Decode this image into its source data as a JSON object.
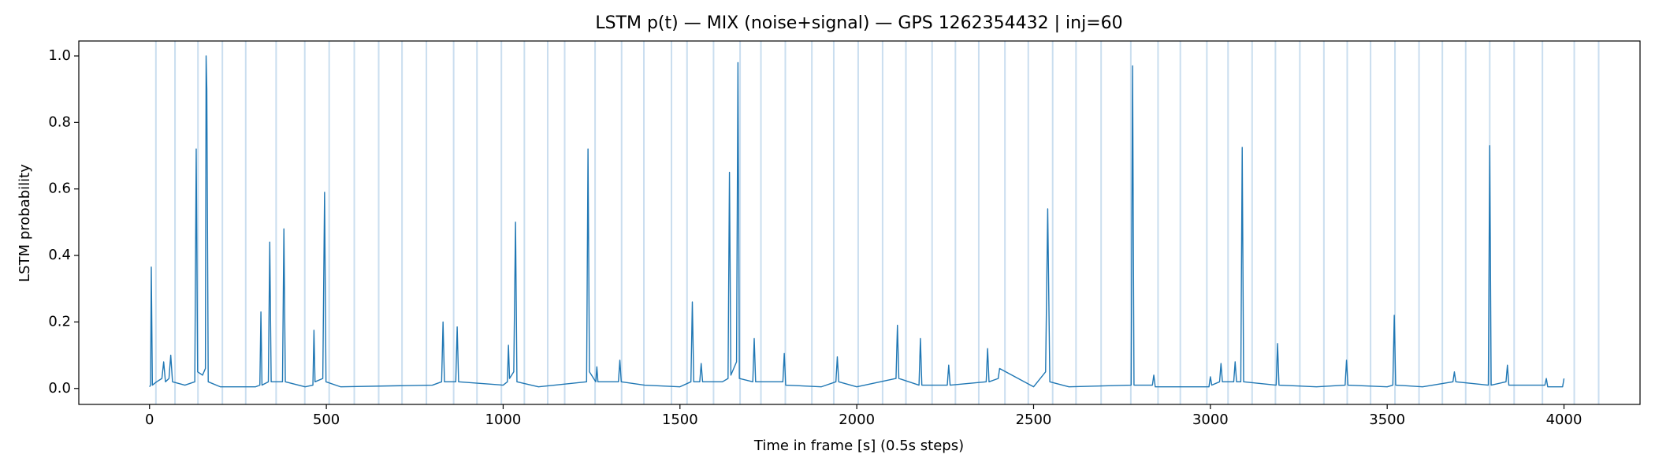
{
  "chart_data": {
    "type": "line",
    "title": "LSTM p(t) — MIX (noise+signal) — GPS 1262354432 | inj=60",
    "x_label": "Time in frame [s] (0.5s steps)",
    "y_label": "LSTM probability",
    "color": "#1f77b4",
    "injection_color": "#a6c8e4",
    "xlim": [
      -200,
      4215
    ],
    "ylim": [
      -0.048,
      1.045
    ],
    "xticks": [
      0,
      500,
      1000,
      1500,
      2000,
      2500,
      3000,
      3500,
      4000
    ],
    "yticks": [
      {
        "value": 0,
        "label": "0.0"
      },
      0.2,
      0.4,
      0.6,
      0.8,
      {
        "value": 1,
        "label": "1.0"
      }
    ],
    "injections": [
      18,
      72,
      137,
      206,
      272,
      358,
      439,
      508,
      579,
      648,
      714,
      783,
      860,
      926,
      995,
      1060,
      1126,
      1174,
      1260,
      1335,
      1398,
      1476,
      1520,
      1595,
      1670,
      1729,
      1798,
      1873,
      1935,
      2004,
      2073,
      2139,
      2213,
      2279,
      2345,
      2419,
      2485,
      2554,
      2620,
      2691,
      2775,
      2852,
      2915,
      2990,
      3050,
      3118,
      3184,
      3253,
      3321,
      3387,
      3453,
      3522,
      3590,
      3656,
      3722,
      3790,
      3859,
      3939,
      4029,
      4098
    ],
    "x": [
      0,
      3,
      5,
      8,
      20,
      35,
      40,
      45,
      55,
      60,
      65,
      100,
      128,
      132,
      136,
      150,
      158,
      160,
      162,
      166,
      200,
      300,
      312,
      315,
      318,
      336,
      340,
      344,
      376,
      380,
      384,
      440,
      462,
      465,
      468,
      490,
      495,
      499,
      540,
      800,
      826,
      830,
      834,
      866,
      870,
      874,
      1000,
      1012,
      1015,
      1018,
      1030,
      1035,
      1039,
      1100,
      1236,
      1240,
      1244,
      1262,
      1265,
      1268,
      1326,
      1330,
      1334,
      1400,
      1500,
      1531,
      1535,
      1539,
      1556,
      1560,
      1564,
      1620,
      1636,
      1640,
      1644,
      1660,
      1664,
      1668,
      1706,
      1710,
      1714,
      1791,
      1795,
      1799,
      1900,
      1941,
      1945,
      1949,
      2000,
      2111,
      2115,
      2119,
      2176,
      2180,
      2184,
      2256,
      2260,
      2264,
      2366,
      2370,
      2374,
      2400,
      2404,
      2500,
      2534,
      2540,
      2546,
      2600,
      2776,
      2780,
      2784,
      2836,
      2840,
      2844,
      2996,
      3000,
      3004,
      3026,
      3030,
      3034,
      3066,
      3070,
      3074,
      3086,
      3090,
      3094,
      3186,
      3190,
      3194,
      3300,
      3381,
      3385,
      3389,
      3500,
      3516,
      3520,
      3524,
      3600,
      3686,
      3690,
      3694,
      3786,
      3790,
      3794,
      3836,
      3840,
      3844,
      3946,
      3950,
      3954,
      3996,
      4000
    ],
    "values": [
      0.005,
      0.01,
      0.365,
      0.01,
      0.02,
      0.03,
      0.08,
      0.02,
      0.03,
      0.1,
      0.02,
      0.01,
      0.02,
      0.72,
      0.05,
      0.04,
      0.06,
      1.0,
      0.9,
      0.02,
      0.005,
      0.005,
      0.01,
      0.23,
      0.01,
      0.02,
      0.44,
      0.02,
      0.02,
      0.48,
      0.02,
      0.005,
      0.01,
      0.175,
      0.02,
      0.03,
      0.59,
      0.02,
      0.005,
      0.01,
      0.02,
      0.2,
      0.02,
      0.02,
      0.185,
      0.02,
      0.01,
      0.02,
      0.13,
      0.03,
      0.05,
      0.5,
      0.02,
      0.005,
      0.02,
      0.72,
      0.05,
      0.02,
      0.065,
      0.02,
      0.02,
      0.085,
      0.02,
      0.01,
      0.005,
      0.02,
      0.26,
      0.02,
      0.02,
      0.075,
      0.02,
      0.02,
      0.03,
      0.65,
      0.04,
      0.08,
      0.98,
      0.03,
      0.02,
      0.15,
      0.02,
      0.02,
      0.105,
      0.01,
      0.005,
      0.02,
      0.095,
      0.02,
      0.005,
      0.03,
      0.19,
      0.03,
      0.01,
      0.15,
      0.01,
      0.01,
      0.07,
      0.01,
      0.02,
      0.12,
      0.02,
      0.03,
      0.06,
      0.005,
      0.05,
      0.54,
      0.02,
      0.005,
      0.01,
      0.97,
      0.01,
      0.01,
      0.04,
      0.005,
      0.005,
      0.035,
      0.01,
      0.02,
      0.075,
      0.02,
      0.02,
      0.08,
      0.02,
      0.02,
      0.725,
      0.02,
      0.01,
      0.135,
      0.01,
      0.005,
      0.01,
      0.085,
      0.01,
      0.005,
      0.01,
      0.22,
      0.01,
      0.005,
      0.02,
      0.05,
      0.02,
      0.01,
      0.73,
      0.01,
      0.02,
      0.07,
      0.01,
      0.01,
      0.03,
      0.005,
      0.005,
      0.03
    ]
  }
}
